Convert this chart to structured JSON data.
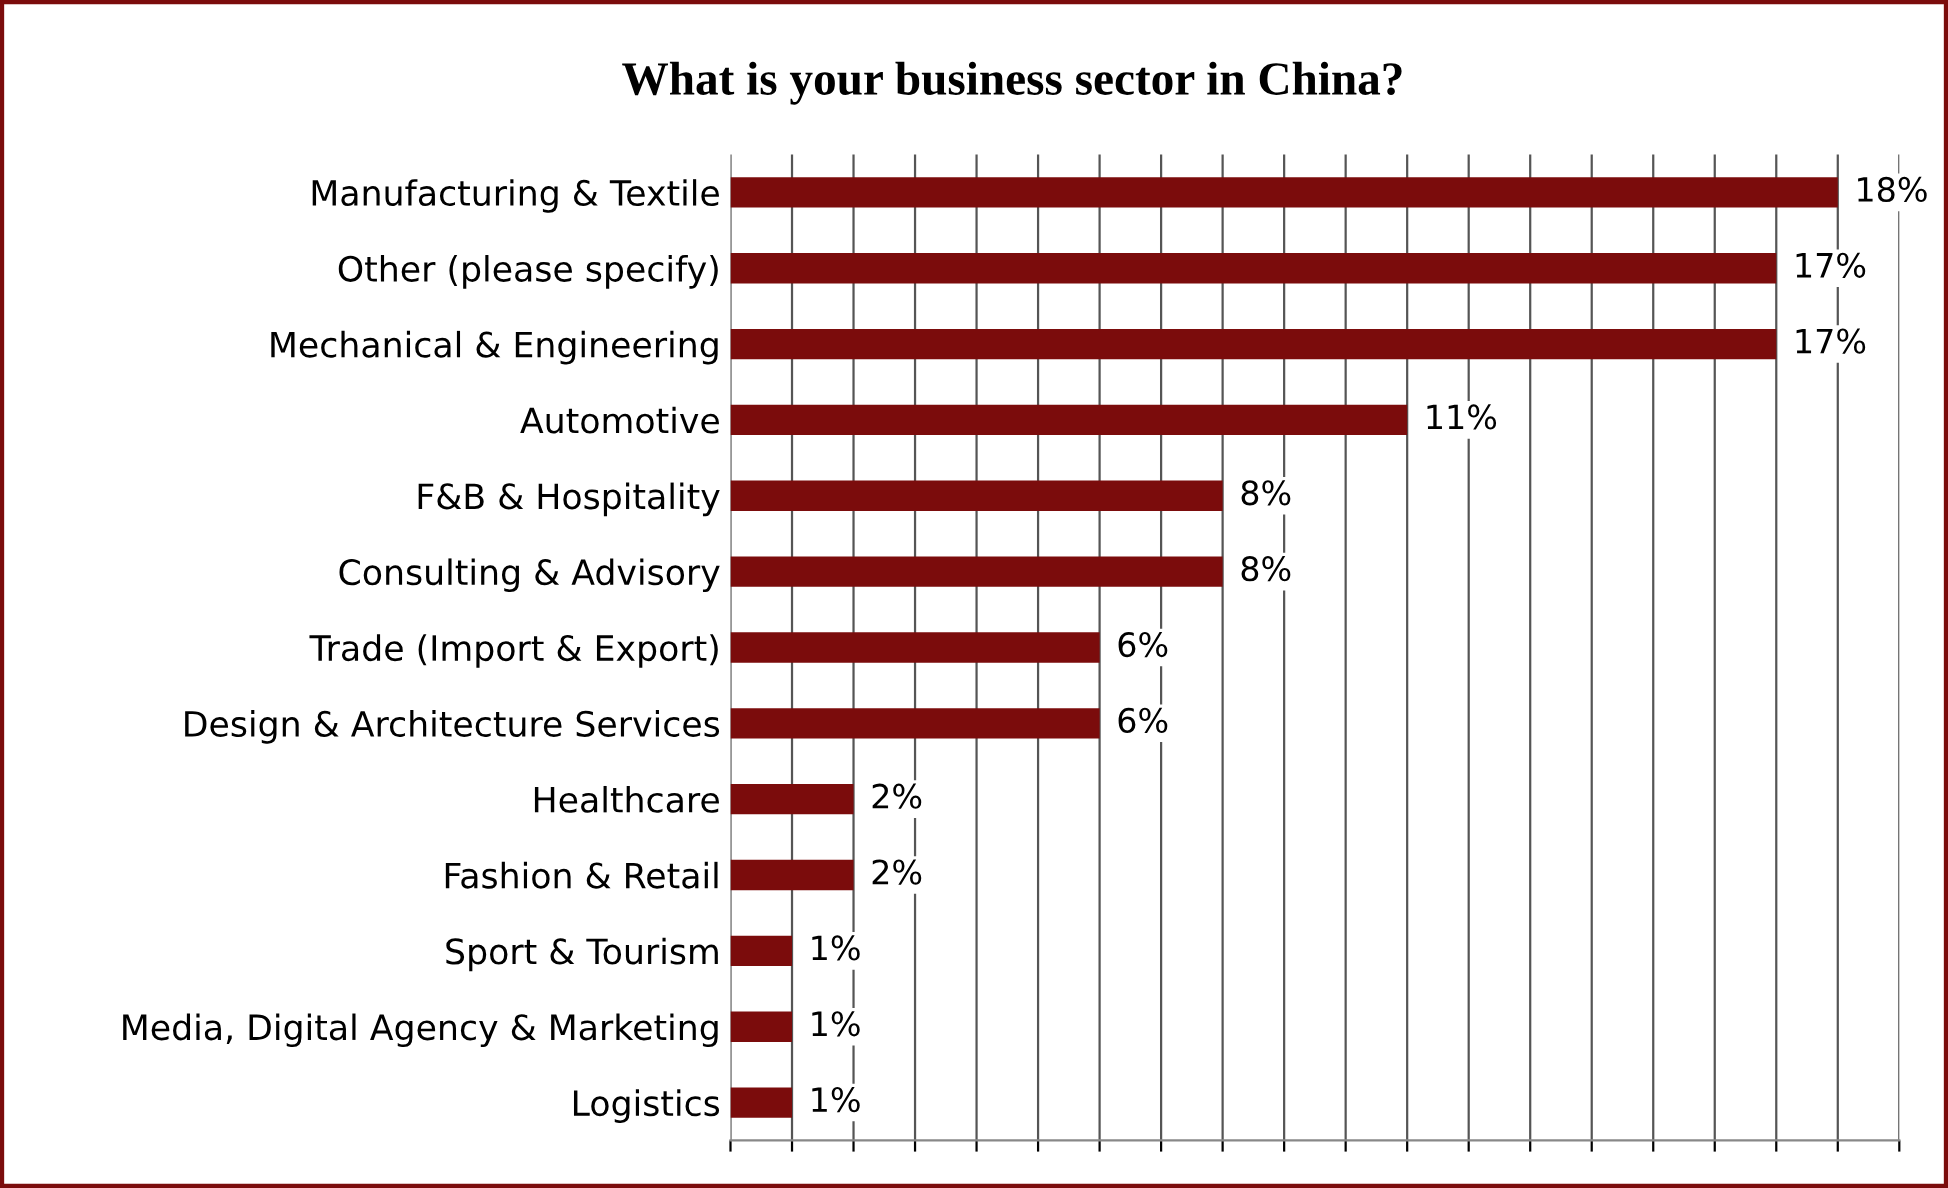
{
  "chart_data": {
    "type": "bar",
    "orientation": "horizontal",
    "title": "What is your business sector in China?",
    "categories": [
      "Manufacturing & Textile",
      "Other (please specify)",
      "Mechanical & Engineering",
      "Automotive",
      "F&B & Hospitality",
      "Consulting & Advisory",
      "Trade (Import & Export)",
      "Design & Architecture Services",
      "Healthcare",
      "Fashion & Retail",
      "Sport & Tourism",
      "Media, Digital Agency & Marketing",
      "Logistics"
    ],
    "values": [
      18,
      17,
      17,
      11,
      8,
      8,
      6,
      6,
      2,
      2,
      1,
      1,
      1
    ],
    "value_labels": [
      "18%",
      "17%",
      "17%",
      "11%",
      "8%",
      "8%",
      "6%",
      "6%",
      "2%",
      "2%",
      "1%",
      "1%",
      "1%"
    ],
    "color": "#7b0c0c",
    "xlim": [
      0,
      19
    ],
    "xticks": [
      {
        "value": 0,
        "label": null
      },
      {
        "value": 1,
        "label": null
      },
      {
        "value": 2,
        "label": null
      },
      {
        "value": 3,
        "label": null
      },
      {
        "value": 4,
        "label": null
      },
      {
        "value": 5,
        "label": null
      },
      {
        "value": 6,
        "label": null
      },
      {
        "value": 7,
        "label": null
      },
      {
        "value": 8,
        "label": null
      },
      {
        "value": 9,
        "label": null
      },
      {
        "value": 10,
        "label": null
      },
      {
        "value": 11,
        "label": null
      },
      {
        "value": 12,
        "label": null
      },
      {
        "value": 13,
        "label": null
      },
      {
        "value": 14,
        "label": null
      },
      {
        "value": 15,
        "label": null
      },
      {
        "value": 16,
        "label": null
      },
      {
        "value": 17,
        "label": null
      },
      {
        "value": 18,
        "label": null
      },
      {
        "value": 19,
        "label": null
      }
    ],
    "grid": "x",
    "tick_labels": "y"
  }
}
